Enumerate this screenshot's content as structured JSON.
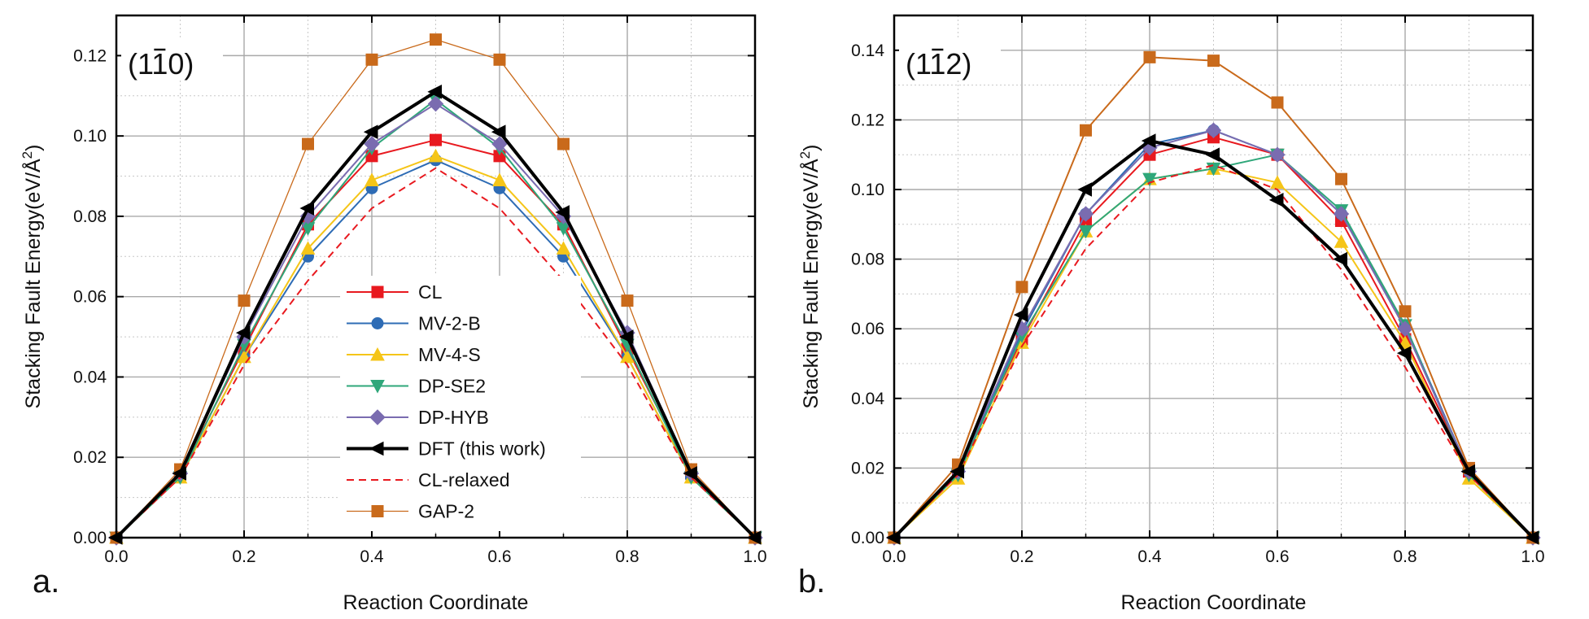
{
  "chart_data": [
    {
      "type": "line",
      "panel_letter": "a.",
      "panel_label": {
        "prefix": "(1",
        "bar": "1",
        "suffix": "0)"
      },
      "xlabel": "Reaction Coordinate",
      "ylabel": {
        "main": "Stacking Fault Energy(eV/Å",
        "sup": "2",
        "close": ")"
      },
      "xlim": [
        0.0,
        1.0
      ],
      "ylim": [
        0.0,
        0.13
      ],
      "xticks": [
        "0.0",
        "0.2",
        "0.4",
        "0.6",
        "0.8",
        "1.0"
      ],
      "yticks": [
        "0.00",
        "0.02",
        "0.04",
        "0.06",
        "0.08",
        "0.10",
        "0.12"
      ],
      "grid": true,
      "legend_position": "bottom-center",
      "x": [
        0.0,
        0.1,
        0.2,
        0.3,
        0.4,
        0.5,
        0.6,
        0.7,
        0.8,
        0.9,
        1.0
      ],
      "series": [
        {
          "name": "CL",
          "color": "#e8191f",
          "marker": "square",
          "dash": false,
          "width": 2,
          "values": [
            0.0,
            0.016,
            0.047,
            0.078,
            0.095,
            0.099,
            0.095,
            0.078,
            0.047,
            0.016,
            0.0
          ]
        },
        {
          "name": "MV-2-B",
          "color": "#2e6cb5",
          "marker": "circle",
          "dash": false,
          "width": 2,
          "values": [
            0.0,
            0.015,
            0.045,
            0.07,
            0.087,
            0.094,
            0.087,
            0.07,
            0.045,
            0.015,
            0.0
          ]
        },
        {
          "name": "MV-4-S",
          "color": "#f5c518",
          "marker": "triangle-up",
          "dash": false,
          "width": 2,
          "values": [
            0.0,
            0.015,
            0.045,
            0.072,
            0.089,
            0.095,
            0.089,
            0.072,
            0.045,
            0.015,
            0.0
          ]
        },
        {
          "name": "DP-SE2",
          "color": "#2fa77a",
          "marker": "triangle-down",
          "dash": false,
          "width": 2,
          "values": [
            0.0,
            0.015,
            0.048,
            0.077,
            0.097,
            0.109,
            0.097,
            0.077,
            0.048,
            0.015,
            0.0
          ]
        },
        {
          "name": "DP-HYB",
          "color": "#7a6cb0",
          "marker": "diamond",
          "dash": false,
          "width": 2,
          "values": [
            0.0,
            0.016,
            0.05,
            0.08,
            0.098,
            0.108,
            0.098,
            0.08,
            0.051,
            0.016,
            0.0
          ]
        },
        {
          "name": "DFT",
          "name_suffix": " (this work)",
          "color": "#000000",
          "marker": "triangle-left",
          "dash": false,
          "width": 4,
          "values": [
            0.0,
            0.016,
            0.051,
            0.082,
            0.101,
            0.111,
            0.101,
            0.081,
            0.05,
            0.016,
            0.0
          ]
        },
        {
          "name": "CL-relaxed",
          "color": "#e8191f",
          "marker": "none",
          "dash": true,
          "width": 2,
          "values": [
            0.0,
            0.015,
            0.043,
            0.064,
            0.082,
            0.092,
            0.082,
            0.064,
            0.043,
            0.015,
            0.0
          ]
        },
        {
          "name": "GAP-2",
          "color": "#c96a1b",
          "marker": "square",
          "dash": false,
          "width": 1.3,
          "values": [
            0.0,
            0.017,
            0.059,
            0.098,
            0.119,
            0.124,
            0.119,
            0.098,
            0.059,
            0.017,
            0.0
          ]
        }
      ]
    },
    {
      "type": "line",
      "panel_letter": "b.",
      "panel_label": {
        "prefix": "(1",
        "bar": "1",
        "suffix": "2)"
      },
      "xlabel": "Reaction Coordinate",
      "ylabel": {
        "main": "Stacking Fault Energy(eV/Å",
        "sup": "2",
        "close": ")"
      },
      "xlim": [
        0.0,
        1.0
      ],
      "ylim": [
        0.0,
        0.15
      ],
      "xticks": [
        "0.0",
        "0.2",
        "0.4",
        "0.6",
        "0.8",
        "1.0"
      ],
      "yticks": [
        "0.00",
        "0.02",
        "0.04",
        "0.06",
        "0.08",
        "0.10",
        "0.12",
        "0.14"
      ],
      "grid": true,
      "x": [
        0.0,
        0.1,
        0.2,
        0.3,
        0.4,
        0.5,
        0.6,
        0.7,
        0.8,
        0.9,
        1.0
      ],
      "series": [
        {
          "name": "CL",
          "color": "#e8191f",
          "marker": "square",
          "dash": false,
          "width": 2,
          "values": [
            0.0,
            0.019,
            0.057,
            0.091,
            0.11,
            0.115,
            0.11,
            0.091,
            0.057,
            0.019,
            0.0
          ]
        },
        {
          "name": "MV-2-B",
          "color": "#2e6cb5",
          "marker": "circle",
          "dash": false,
          "width": 2,
          "values": [
            0.0,
            0.019,
            0.059,
            0.093,
            0.113,
            0.117,
            0.11,
            0.093,
            0.061,
            0.019,
            0.0
          ]
        },
        {
          "name": "MV-4-S",
          "color": "#f5c518",
          "marker": "triangle-up",
          "dash": false,
          "width": 2,
          "values": [
            0.0,
            0.017,
            0.056,
            0.088,
            0.103,
            0.106,
            0.102,
            0.085,
            0.056,
            0.017,
            0.0
          ]
        },
        {
          "name": "DP-SE2",
          "color": "#2fa77a",
          "marker": "triangle-down",
          "dash": false,
          "width": 2,
          "values": [
            0.0,
            0.018,
            0.058,
            0.088,
            0.103,
            0.106,
            0.11,
            0.094,
            0.061,
            0.018,
            0.0
          ]
        },
        {
          "name": "DP-HYB",
          "color": "#7a6cb0",
          "marker": "diamond",
          "dash": false,
          "width": 2,
          "values": [
            0.0,
            0.019,
            0.06,
            0.093,
            0.112,
            0.117,
            0.11,
            0.093,
            0.06,
            0.019,
            0.0
          ]
        },
        {
          "name": "DFT",
          "color": "#000000",
          "marker": "triangle-left",
          "dash": false,
          "width": 4,
          "values": [
            0.0,
            0.019,
            0.064,
            0.1,
            0.114,
            0.11,
            0.097,
            0.08,
            0.053,
            0.019,
            0.0
          ]
        },
        {
          "name": "CL-relaxed",
          "color": "#e8191f",
          "marker": "none",
          "dash": true,
          "width": 2,
          "values": [
            0.0,
            0.018,
            0.055,
            0.083,
            0.102,
            0.107,
            0.1,
            0.077,
            0.049,
            0.018,
            0.0
          ]
        },
        {
          "name": "GAP-2",
          "color": "#c96a1b",
          "marker": "square",
          "dash": false,
          "width": 2,
          "values": [
            0.0,
            0.021,
            0.072,
            0.117,
            0.138,
            0.137,
            0.125,
            0.103,
            0.065,
            0.02,
            0.0
          ]
        }
      ]
    }
  ]
}
